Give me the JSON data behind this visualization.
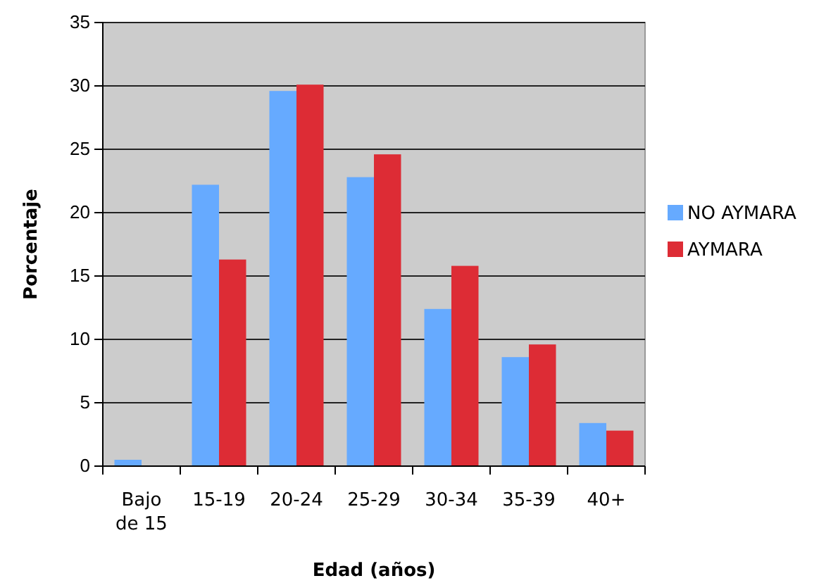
{
  "chart_data": {
    "type": "bar",
    "xlabel": "Edad (años)",
    "ylabel": "Porcentaje",
    "categories": [
      "Bajo de 15",
      "15-19",
      "20-24",
      "25-29",
      "30-34",
      "35-39",
      "40+"
    ],
    "series": [
      {
        "name": "NO AYMARA",
        "color": "#66aaff",
        "values": [
          0.5,
          22.2,
          29.6,
          22.8,
          12.4,
          8.6,
          3.4
        ]
      },
      {
        "name": "AYMARA",
        "color": "#dd2c35",
        "values": [
          0,
          16.3,
          30.1,
          24.6,
          15.8,
          9.6,
          2.8
        ]
      }
    ],
    "ylim": [
      0,
      35
    ],
    "yticks": [
      0,
      5,
      10,
      15,
      20,
      25,
      30,
      35
    ],
    "grid": "y",
    "legend": "right"
  }
}
